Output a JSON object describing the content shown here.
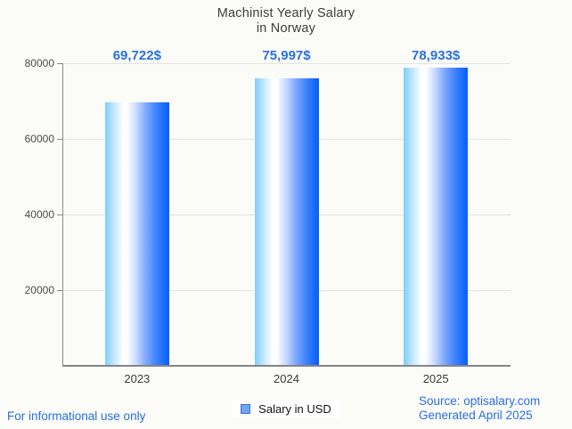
{
  "title": {
    "line1": "Machinist Yearly Salary",
    "line2": "in Norway"
  },
  "chart_data": {
    "type": "bar",
    "title": "Machinist Yearly Salary in Norway",
    "categories": [
      "2023",
      "2024",
      "2025"
    ],
    "values": [
      69722,
      75997,
      78933
    ],
    "value_labels": [
      "69,722$",
      "75,997$",
      "78,933$"
    ],
    "series": [
      {
        "name": "Salary in USD",
        "values": [
          69722,
          75997,
          78933
        ]
      }
    ],
    "xlabel": "",
    "ylabel": "",
    "ylim": [
      0,
      80000
    ],
    "yticks": [
      20000,
      40000,
      60000,
      80000
    ],
    "ytick_labels": [
      "20000",
      "40000",
      "60000",
      "80000"
    ],
    "grid": "horizontal",
    "legend_position": "bottom"
  },
  "legend": {
    "label": "Salary in USD"
  },
  "footer": {
    "left": "For informational use only",
    "source": "Source: optisalary.com",
    "generated": "Generated April 2025"
  },
  "colors": {
    "background": "#fbfbf8",
    "accent_blue": "#2b70e0",
    "title_text": "#3e3e3e",
    "axis_line": "#858585",
    "gridline": "#e4e4e4",
    "bar_gradient_left": "#7fcdfe",
    "bar_gradient_mid": "#ffffff",
    "bar_gradient_right": "#0a63fb",
    "legend_marker_fill": "#6fa4f1",
    "legend_marker_border": "#3f74cd"
  }
}
